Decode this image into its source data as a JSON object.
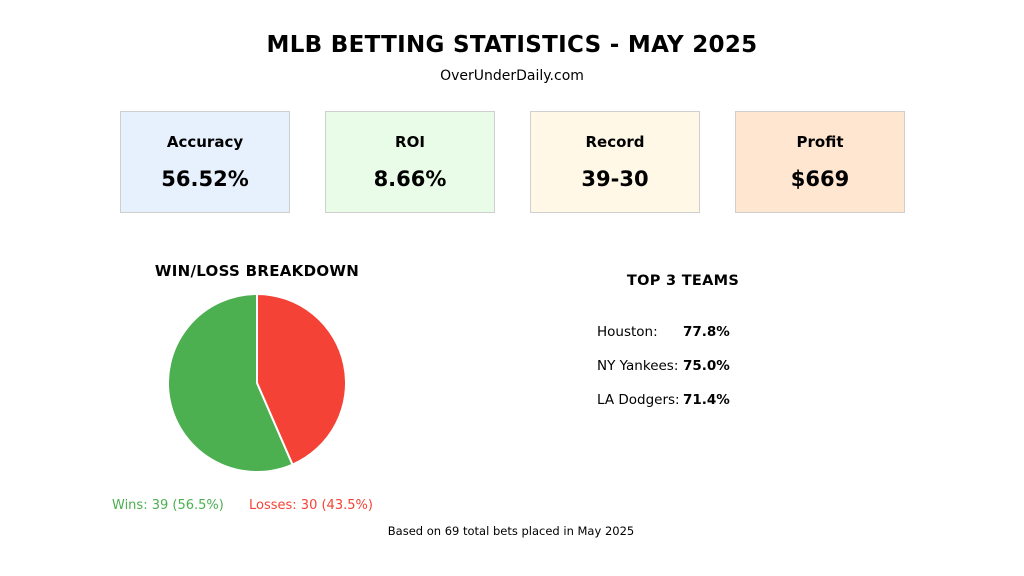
{
  "header": {
    "title": "MLB BETTING STATISTICS - MAY 2025",
    "subtitle": "OverUnderDaily.com"
  },
  "cards": [
    {
      "label": "Accuracy",
      "value": "56.52%",
      "bg": "#e6f1fd"
    },
    {
      "label": "ROI",
      "value": "8.66%",
      "bg": "#e8fce8"
    },
    {
      "label": "Record",
      "value": "39-30",
      "bg": "#fff8e7"
    },
    {
      "label": "Profit",
      "value": "$669",
      "bg": "#ffe6d0"
    }
  ],
  "pie": {
    "title": "WIN/LOSS BREAKDOWN",
    "wins_label": "Wins: 39 (56.5%)",
    "losses_label": "Losses: 30 (43.5%)"
  },
  "top_teams": {
    "title": "TOP 3 TEAMS",
    "rows": [
      {
        "team": "Houston:",
        "pct": "77.8%"
      },
      {
        "team": "NY Yankees:",
        "pct": "75.0%"
      },
      {
        "team": "LA Dodgers:",
        "pct": "71.4%"
      }
    ]
  },
  "footnote": "Based on 69 total bets placed in May 2025",
  "colors": {
    "wins": "#4caf50",
    "losses": "#f44336"
  },
  "chart_data": {
    "type": "pie",
    "title": "WIN/LOSS BREAKDOWN",
    "categories": [
      "Wins",
      "Losses"
    ],
    "values": [
      39,
      30
    ],
    "percents": [
      56.5,
      43.5
    ],
    "colors": [
      "#4caf50",
      "#f44336"
    ],
    "start": "top",
    "direction": "clockwise, losses first"
  }
}
